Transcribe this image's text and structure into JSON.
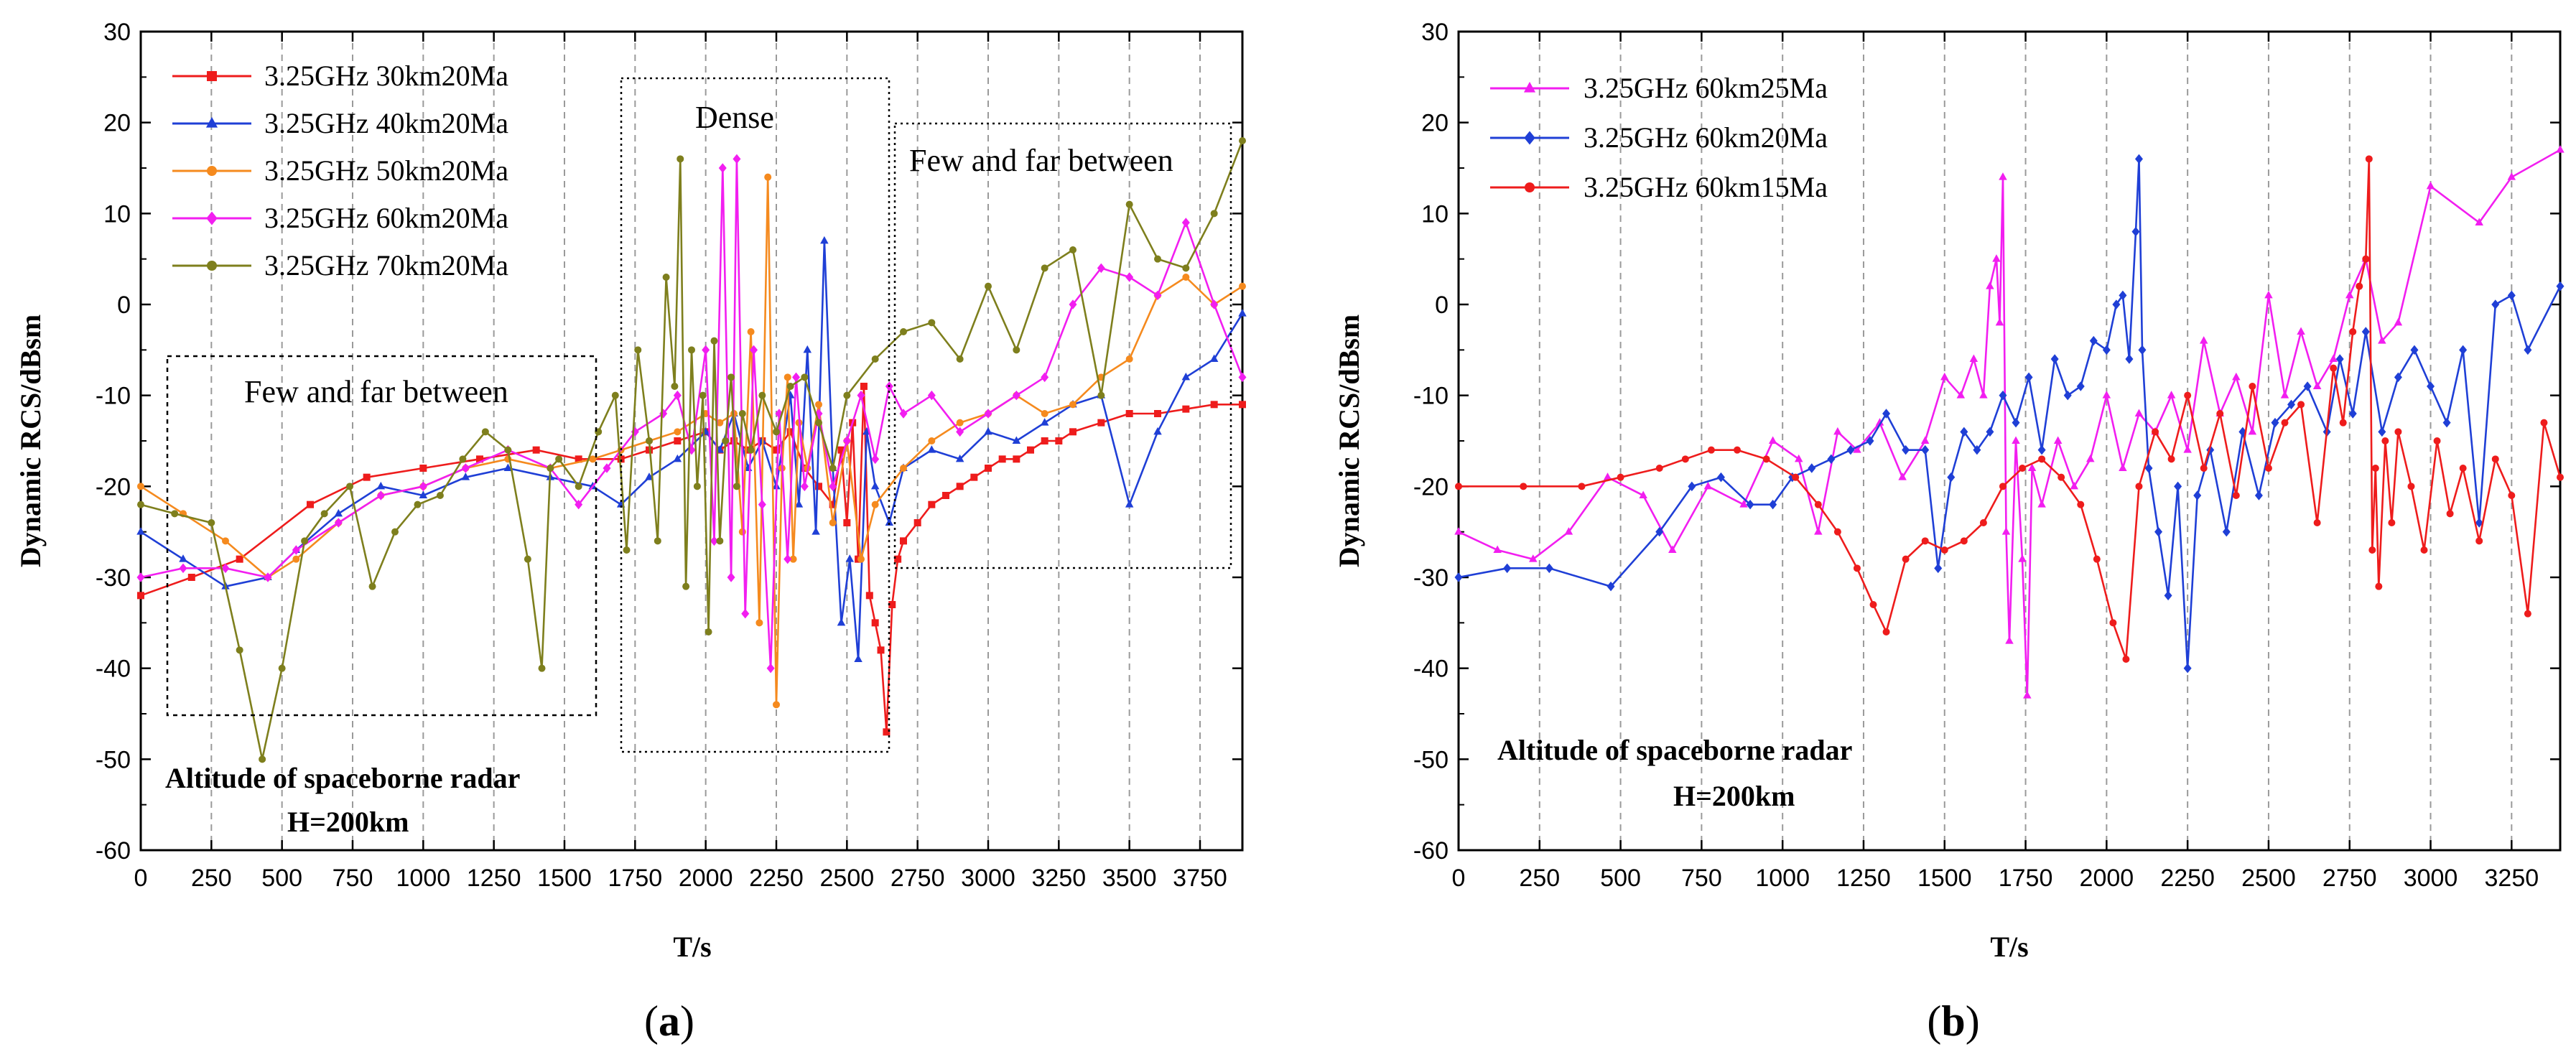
{
  "chart_data": [
    {
      "type": "line",
      "panel_label_open": "(",
      "panel_label_letter": "a",
      "panel_label_close": ")",
      "xlabel": "T/s",
      "ylabel": "Dynamic RCS/dBsm",
      "xlim": [
        0,
        3900
      ],
      "ylim": [
        -60,
        30
      ],
      "x_ticks": [
        0,
        250,
        500,
        750,
        1000,
        1250,
        1500,
        1750,
        2000,
        2250,
        2500,
        2750,
        3000,
        3250,
        3500,
        3750
      ],
      "y_ticks": [
        -60,
        -50,
        -40,
        -30,
        -20,
        -10,
        0,
        10,
        20,
        30
      ],
      "legend_position": "top-left",
      "annotations": {
        "few_left": "Few and far between",
        "dense": "Dense",
        "few_right": "Few and far between",
        "note_line1": "Altitude of spaceborne radar",
        "note_line2": "H=200km"
      },
      "series": [
        {
          "name": "3.25GHz 30km20Ma",
          "color": "#ee1c1c",
          "marker": "square",
          "x": [
            0,
            180,
            350,
            600,
            800,
            1000,
            1200,
            1400,
            1550,
            1700,
            1800,
            1900,
            2000,
            2050,
            2100,
            2150,
            2200,
            2250,
            2300,
            2350,
            2400,
            2450,
            2480,
            2500,
            2520,
            2540,
            2560,
            2580,
            2600,
            2620,
            2640,
            2660,
            2680,
            2700,
            2750,
            2800,
            2850,
            2900,
            2950,
            3000,
            3050,
            3100,
            3150,
            3200,
            3250,
            3300,
            3400,
            3500,
            3600,
            3700,
            3800,
            3900
          ],
          "y": [
            -32,
            -30,
            -28,
            -22,
            -19,
            -18,
            -17,
            -16,
            -17,
            -17,
            -16,
            -15,
            -14,
            -16,
            -15,
            -16,
            -15,
            -16,
            -14,
            -18,
            -20,
            -22,
            -16,
            -24,
            -13,
            -28,
            -9,
            -32,
            -35,
            -38,
            -47,
            -33,
            -28,
            -26,
            -24,
            -22,
            -21,
            -20,
            -19,
            -18,
            -17,
            -17,
            -16,
            -15,
            -15,
            -14,
            -13,
            -12,
            -12,
            -11.5,
            -11,
            -11
          ]
        },
        {
          "name": "3.25GHz 40km20Ma",
          "color": "#1f3fd6",
          "marker": "triangle",
          "x": [
            0,
            150,
            300,
            450,
            550,
            700,
            850,
            1000,
            1150,
            1300,
            1450,
            1600,
            1700,
            1800,
            1900,
            2000,
            2050,
            2100,
            2150,
            2200,
            2250,
            2300,
            2330,
            2360,
            2390,
            2420,
            2450,
            2480,
            2510,
            2540,
            2570,
            2600,
            2650,
            2700,
            2800,
            2900,
            3000,
            3100,
            3200,
            3300,
            3400,
            3500,
            3600,
            3700,
            3800,
            3900
          ],
          "y": [
            -25,
            -28,
            -31,
            -30,
            -27,
            -23,
            -20,
            -21,
            -19,
            -18,
            -19,
            -20,
            -22,
            -19,
            -17,
            -14,
            -16,
            -12,
            -18,
            -15,
            -20,
            -10,
            -22,
            -5,
            -25,
            7,
            -18,
            -35,
            -28,
            -39,
            -14,
            -20,
            -24,
            -18,
            -16,
            -17,
            -14,
            -15,
            -13,
            -11,
            -10,
            -22,
            -14,
            -8,
            -6,
            -1
          ]
        },
        {
          "name": "3.25GHz 50km20Ma",
          "color": "#f58a1e",
          "marker": "circle",
          "x": [
            0,
            150,
            300,
            450,
            550,
            700,
            850,
            1000,
            1150,
            1300,
            1450,
            1600,
            1700,
            1800,
            1900,
            2000,
            2050,
            2100,
            2130,
            2160,
            2190,
            2220,
            2250,
            2270,
            2290,
            2310,
            2330,
            2360,
            2400,
            2450,
            2500,
            2550,
            2600,
            2700,
            2800,
            2900,
            3000,
            3100,
            3200,
            3300,
            3400,
            3500,
            3600,
            3700,
            3800,
            3900
          ],
          "y": [
            -20,
            -23,
            -26,
            -30,
            -28,
            -24,
            -21,
            -20,
            -18,
            -17,
            -18,
            -17,
            -16,
            -15,
            -14,
            -12,
            -13,
            -12,
            -25,
            -3,
            -35,
            14,
            -44,
            -18,
            -8,
            -28,
            -13,
            -18,
            -11,
            -24,
            -15,
            -28,
            -22,
            -18,
            -15,
            -13,
            -12,
            -10,
            -12,
            -11,
            -8,
            -6,
            1,
            3,
            0,
            2
          ]
        },
        {
          "name": "3.25GHz 60km20Ma",
          "color": "#f21ef0",
          "marker": "diamond",
          "x": [
            0,
            150,
            300,
            450,
            550,
            700,
            850,
            1000,
            1150,
            1300,
            1450,
            1550,
            1650,
            1750,
            1850,
            1900,
            1950,
            2000,
            2030,
            2060,
            2090,
            2110,
            2140,
            2170,
            2200,
            2230,
            2260,
            2290,
            2320,
            2350,
            2400,
            2450,
            2500,
            2550,
            2600,
            2650,
            2700,
            2800,
            2900,
            3000,
            3100,
            3200,
            3300,
            3400,
            3500,
            3600,
            3700,
            3800,
            3900
          ],
          "y": [
            -30,
            -29,
            -29,
            -30,
            -27,
            -24,
            -21,
            -20,
            -18,
            -16,
            -18,
            -22,
            -18,
            -14,
            -12,
            -10,
            -16,
            -5,
            -26,
            15,
            -30,
            16,
            -34,
            -5,
            -22,
            -40,
            -12,
            -28,
            -8,
            -20,
            -12,
            -20,
            -15,
            -10,
            -17,
            -9,
            -12,
            -10,
            -14,
            -12,
            -10,
            -8,
            0,
            4,
            3,
            1,
            9,
            0,
            -8
          ]
        },
        {
          "name": "3.25GHz 70km20Ma",
          "color": "#7e7f1d",
          "marker": "circle",
          "x": [
            0,
            120,
            250,
            350,
            430,
            500,
            580,
            650,
            740,
            820,
            900,
            980,
            1060,
            1140,
            1220,
            1300,
            1370,
            1420,
            1450,
            1480,
            1550,
            1620,
            1680,
            1720,
            1760,
            1800,
            1830,
            1860,
            1890,
            1910,
            1930,
            1950,
            1970,
            1990,
            2010,
            2030,
            2050,
            2070,
            2090,
            2110,
            2130,
            2160,
            2200,
            2250,
            2300,
            2350,
            2400,
            2450,
            2500,
            2600,
            2700,
            2800,
            2900,
            3000,
            3100,
            3200,
            3300,
            3400,
            3500,
            3600,
            3700,
            3800,
            3900
          ],
          "y": [
            -22,
            -23,
            -24,
            -38,
            -50,
            -40,
            -26,
            -23,
            -20,
            -31,
            -25,
            -22,
            -21,
            -17,
            -14,
            -16,
            -28,
            -40,
            -18,
            -17,
            -20,
            -14,
            -10,
            -27,
            -5,
            -15,
            -26,
            3,
            -9,
            16,
            -31,
            -5,
            -20,
            -10,
            -36,
            -4,
            -26,
            -15,
            -8,
            -20,
            -12,
            -16,
            -10,
            -14,
            -9,
            -8,
            -13,
            -18,
            -10,
            -6,
            -3,
            -2,
            -6,
            2,
            -5,
            4,
            6,
            -10,
            11,
            5,
            4,
            10,
            18
          ]
        }
      ]
    },
    {
      "type": "line",
      "panel_label_open": "(",
      "panel_label_letter": "b",
      "panel_label_close": ")",
      "xlabel": "T/s",
      "ylabel": "Dynamic RCS/dBsm",
      "xlim": [
        0,
        3400
      ],
      "ylim": [
        -60,
        30
      ],
      "x_ticks": [
        0,
        250,
        500,
        750,
        1000,
        1250,
        1500,
        1750,
        2000,
        2250,
        2500,
        2750,
        3000,
        3250
      ],
      "y_ticks": [
        -60,
        -50,
        -40,
        -30,
        -20,
        -10,
        0,
        10,
        20,
        30
      ],
      "legend_position": "top-left",
      "annotations": {
        "note_line1": "Altitude of spaceborne radar",
        "note_line2": "H=200km"
      },
      "series": [
        {
          "name": "3.25GHz 60km25Ma",
          "color": "#f21ef0",
          "marker": "triangle",
          "x": [
            0,
            120,
            230,
            340,
            460,
            570,
            660,
            770,
            880,
            970,
            1050,
            1110,
            1170,
            1230,
            1300,
            1370,
            1440,
            1500,
            1550,
            1590,
            1620,
            1640,
            1660,
            1670,
            1680,
            1690,
            1700,
            1720,
            1740,
            1755,
            1770,
            1800,
            1850,
            1900,
            1950,
            2000,
            2050,
            2100,
            2150,
            2200,
            2250,
            2300,
            2350,
            2400,
            2450,
            2500,
            2550,
            2600,
            2650,
            2700,
            2750,
            2800,
            2850,
            2900,
            3000,
            3150,
            3250,
            3400
          ],
          "y": [
            -25,
            -27,
            -28,
            -25,
            -19,
            -21,
            -27,
            -20,
            -22,
            -15,
            -17,
            -25,
            -14,
            -16,
            -13,
            -19,
            -15,
            -8,
            -10,
            -6,
            -10,
            2,
            5,
            -2,
            14,
            -25,
            -37,
            -15,
            -28,
            -43,
            -18,
            -22,
            -15,
            -20,
            -17,
            -10,
            -18,
            -12,
            -14,
            -10,
            -16,
            -4,
            -12,
            -8,
            -14,
            1,
            -10,
            -3,
            -9,
            -6,
            1,
            5,
            -4,
            -2,
            13,
            9,
            14,
            17
          ]
        },
        {
          "name": "3.25GHz 60km20Ma",
          "color": "#1f3fd6",
          "marker": "diamond",
          "x": [
            0,
            150,
            280,
            470,
            620,
            720,
            810,
            900,
            970,
            1030,
            1090,
            1150,
            1210,
            1270,
            1320,
            1380,
            1440,
            1480,
            1520,
            1560,
            1600,
            1640,
            1680,
            1720,
            1760,
            1800,
            1840,
            1880,
            1920,
            1960,
            2000,
            2030,
            2050,
            2070,
            2090,
            2100,
            2110,
            2130,
            2160,
            2190,
            2220,
            2250,
            2280,
            2320,
            2370,
            2420,
            2470,
            2520,
            2570,
            2620,
            2680,
            2720,
            2760,
            2800,
            2850,
            2900,
            2950,
            3000,
            3050,
            3100,
            3150,
            3200,
            3250,
            3300,
            3400
          ],
          "y": [
            -30,
            -29,
            -29,
            -31,
            -25,
            -20,
            -19,
            -22,
            -22,
            -19,
            -18,
            -17,
            -16,
            -15,
            -12,
            -16,
            -16,
            -29,
            -19,
            -14,
            -16,
            -14,
            -10,
            -13,
            -8,
            -16,
            -6,
            -10,
            -9,
            -4,
            -5,
            0,
            1,
            -6,
            8,
            16,
            -5,
            -18,
            -25,
            -32,
            -20,
            -40,
            -21,
            -16,
            -25,
            -14,
            -21,
            -13,
            -11,
            -9,
            -14,
            -6,
            -12,
            -3,
            -14,
            -8,
            -5,
            -9,
            -13,
            -5,
            -24,
            0,
            1,
            -5,
            2
          ]
        },
        {
          "name": "3.25GHz 60km15Ma",
          "color": "#ee1c1c",
          "marker": "circle",
          "x": [
            0,
            200,
            380,
            500,
            620,
            700,
            780,
            860,
            950,
            1040,
            1110,
            1170,
            1230,
            1280,
            1320,
            1380,
            1440,
            1500,
            1560,
            1620,
            1680,
            1740,
            1800,
            1860,
            1920,
            1970,
            2020,
            2060,
            2100,
            2150,
            2200,
            2250,
            2300,
            2350,
            2400,
            2450,
            2500,
            2550,
            2600,
            2650,
            2700,
            2730,
            2760,
            2780,
            2800,
            2810,
            2820,
            2830,
            2840,
            2860,
            2880,
            2900,
            2940,
            2980,
            3020,
            3060,
            3100,
            3150,
            3200,
            3250,
            3300,
            3350,
            3400
          ],
          "y": [
            -20,
            -20,
            -20,
            -19,
            -18,
            -17,
            -16,
            -16,
            -17,
            -19,
            -22,
            -25,
            -29,
            -33,
            -36,
            -28,
            -26,
            -27,
            -26,
            -24,
            -20,
            -18,
            -17,
            -19,
            -22,
            -28,
            -35,
            -39,
            -20,
            -14,
            -17,
            -10,
            -18,
            -12,
            -21,
            -9,
            -18,
            -13,
            -11,
            -24,
            -7,
            -13,
            -3,
            2,
            5,
            16,
            -27,
            -18,
            -31,
            -15,
            -24,
            -14,
            -20,
            -27,
            -15,
            -23,
            -18,
            -26,
            -17,
            -21,
            -34,
            -13,
            -19
          ]
        }
      ]
    }
  ]
}
